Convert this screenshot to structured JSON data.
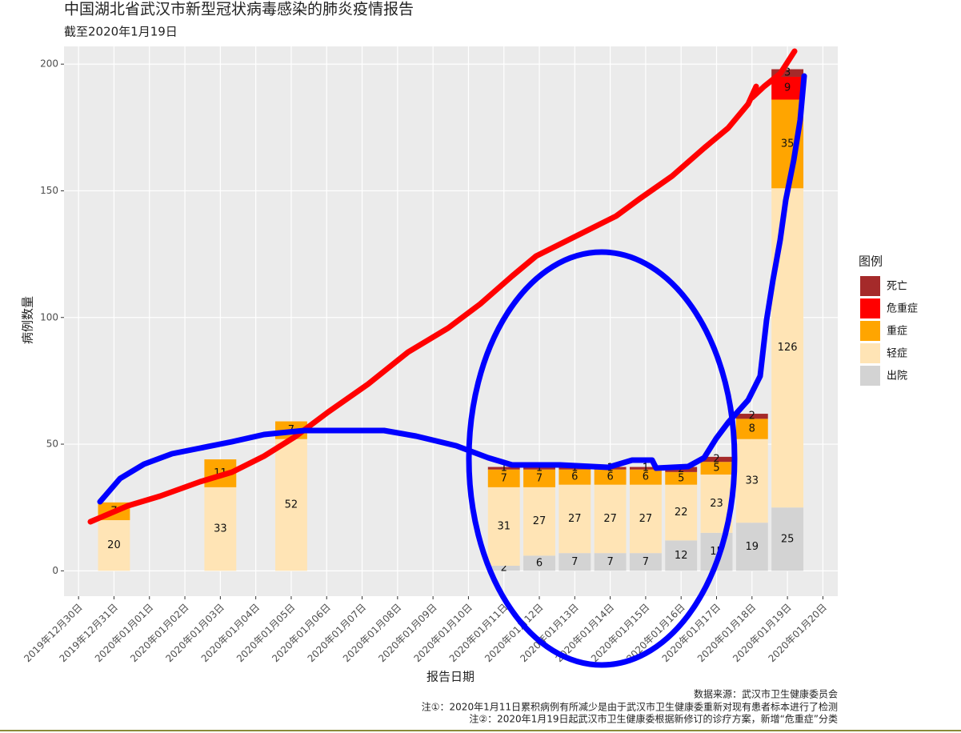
{
  "chart_data": {
    "type": "bar",
    "stacked": true,
    "title": "中国湖北省武汉市新型冠状病毒感染的肺炎疫情报告",
    "subtitle": "截至2020年1月19日",
    "x_label": "报告日期",
    "y_label": "病例数量",
    "legend_title": "图例",
    "notes": [
      "数据来源：武汉市卫生健康委员会",
      "注①：2020年1月11日累积病例有所减少是由于武汉市卫生健康委重新对现有患者标本进行了检测",
      "注②：2020年1月19日起武汉市卫生健康委根据新修订的诊疗方案，新增“危重症”分类"
    ],
    "x": [
      "2019-12-31",
      "2020-01-03",
      "2020-01-05",
      "2020-01-11",
      "2020-01-12",
      "2020-01-13",
      "2020-01-14",
      "2020-01-15",
      "2020-01-16",
      "2020-01-17",
      "2020-01-18",
      "2020-01-19"
    ],
    "series": [
      {
        "name": "死亡",
        "color": "#a52a2a",
        "values": [
          null,
          null,
          null,
          1,
          1,
          1,
          1,
          1,
          2,
          2,
          2,
          3
        ]
      },
      {
        "name": "危重症",
        "color": "#ff0000",
        "values": [
          null,
          null,
          null,
          null,
          null,
          null,
          null,
          null,
          null,
          null,
          null,
          9
        ]
      },
      {
        "name": "重症",
        "color": "#ffa500",
        "values": [
          7,
          11,
          7,
          7,
          7,
          6,
          6,
          6,
          5,
          5,
          8,
          35
        ]
      },
      {
        "name": "轻症",
        "color": "#ffe4b5",
        "values": [
          20,
          33,
          52,
          31,
          27,
          27,
          27,
          27,
          22,
          23,
          33,
          126
        ]
      },
      {
        "name": "出院",
        "color": "#d3d3d3",
        "values": [
          null,
          null,
          null,
          2,
          6,
          7,
          7,
          7,
          12,
          15,
          19,
          25
        ]
      }
    ],
    "ylim": [
      -10,
      207
    ],
    "yticks": [
      0,
      50,
      100,
      150,
      200
    ],
    "xticks": [
      {
        "value": "2019-12-30",
        "label": "2019年12月30日"
      },
      {
        "value": "2019-12-31",
        "label": "2019年12月31日"
      },
      {
        "value": "2020-01-01",
        "label": "2020年01月01日"
      },
      {
        "value": "2020-01-02",
        "label": "2020年01月02日"
      },
      {
        "value": "2020-01-03",
        "label": "2020年01月03日"
      },
      {
        "value": "2020-01-04",
        "label": "2020年01月04日"
      },
      {
        "value": "2020-01-05",
        "label": "2020年01月05日"
      },
      {
        "value": "2020-01-06",
        "label": "2020年01月06日"
      },
      {
        "value": "2020-01-07",
        "label": "2020年01月07日"
      },
      {
        "value": "2020-01-08",
        "label": "2020年01月08日"
      },
      {
        "value": "2020-01-09",
        "label": "2020年01月09日"
      },
      {
        "value": "2020-01-10",
        "label": "2020年01月10日"
      },
      {
        "value": "2020-01-11",
        "label": "2020年01月11日"
      },
      {
        "value": "2020-01-12",
        "label": "2020年01月12日"
      },
      {
        "value": "2020-01-13",
        "label": "2020年01月13日"
      },
      {
        "value": "2020-01-14",
        "label": "2020年01月14日"
      },
      {
        "value": "2020-01-15",
        "label": "2020年01月15日"
      },
      {
        "value": "2020-01-16",
        "label": "2020年01月16日"
      },
      {
        "value": "2020-01-17",
        "label": "2020年01月17日"
      },
      {
        "value": "2020-01-18",
        "label": "2020年01月18日"
      },
      {
        "value": "2020-01-19",
        "label": "2020年01月19日"
      },
      {
        "value": "2020-01-20",
        "label": "2020年01月20日"
      }
    ],
    "grid": true,
    "legend": "right"
  }
}
